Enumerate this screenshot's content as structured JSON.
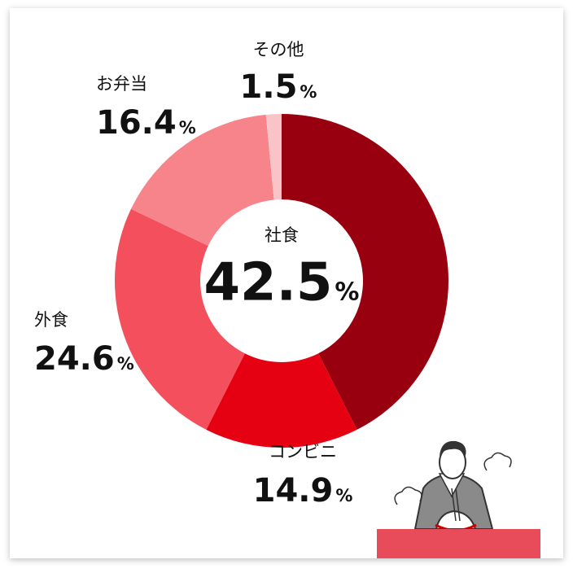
{
  "chart_data": {
    "type": "pie",
    "donut": true,
    "categories": [
      "社食",
      "コンビニ",
      "外食",
      "お弁当",
      "その他"
    ],
    "values": [
      42.5,
      14.9,
      24.6,
      16.4,
      1.5
    ],
    "colors": [
      "#99000f",
      "#e50012",
      "#f44f5c",
      "#f7838b",
      "#f9c3c7"
    ],
    "unit": "%"
  }
}
